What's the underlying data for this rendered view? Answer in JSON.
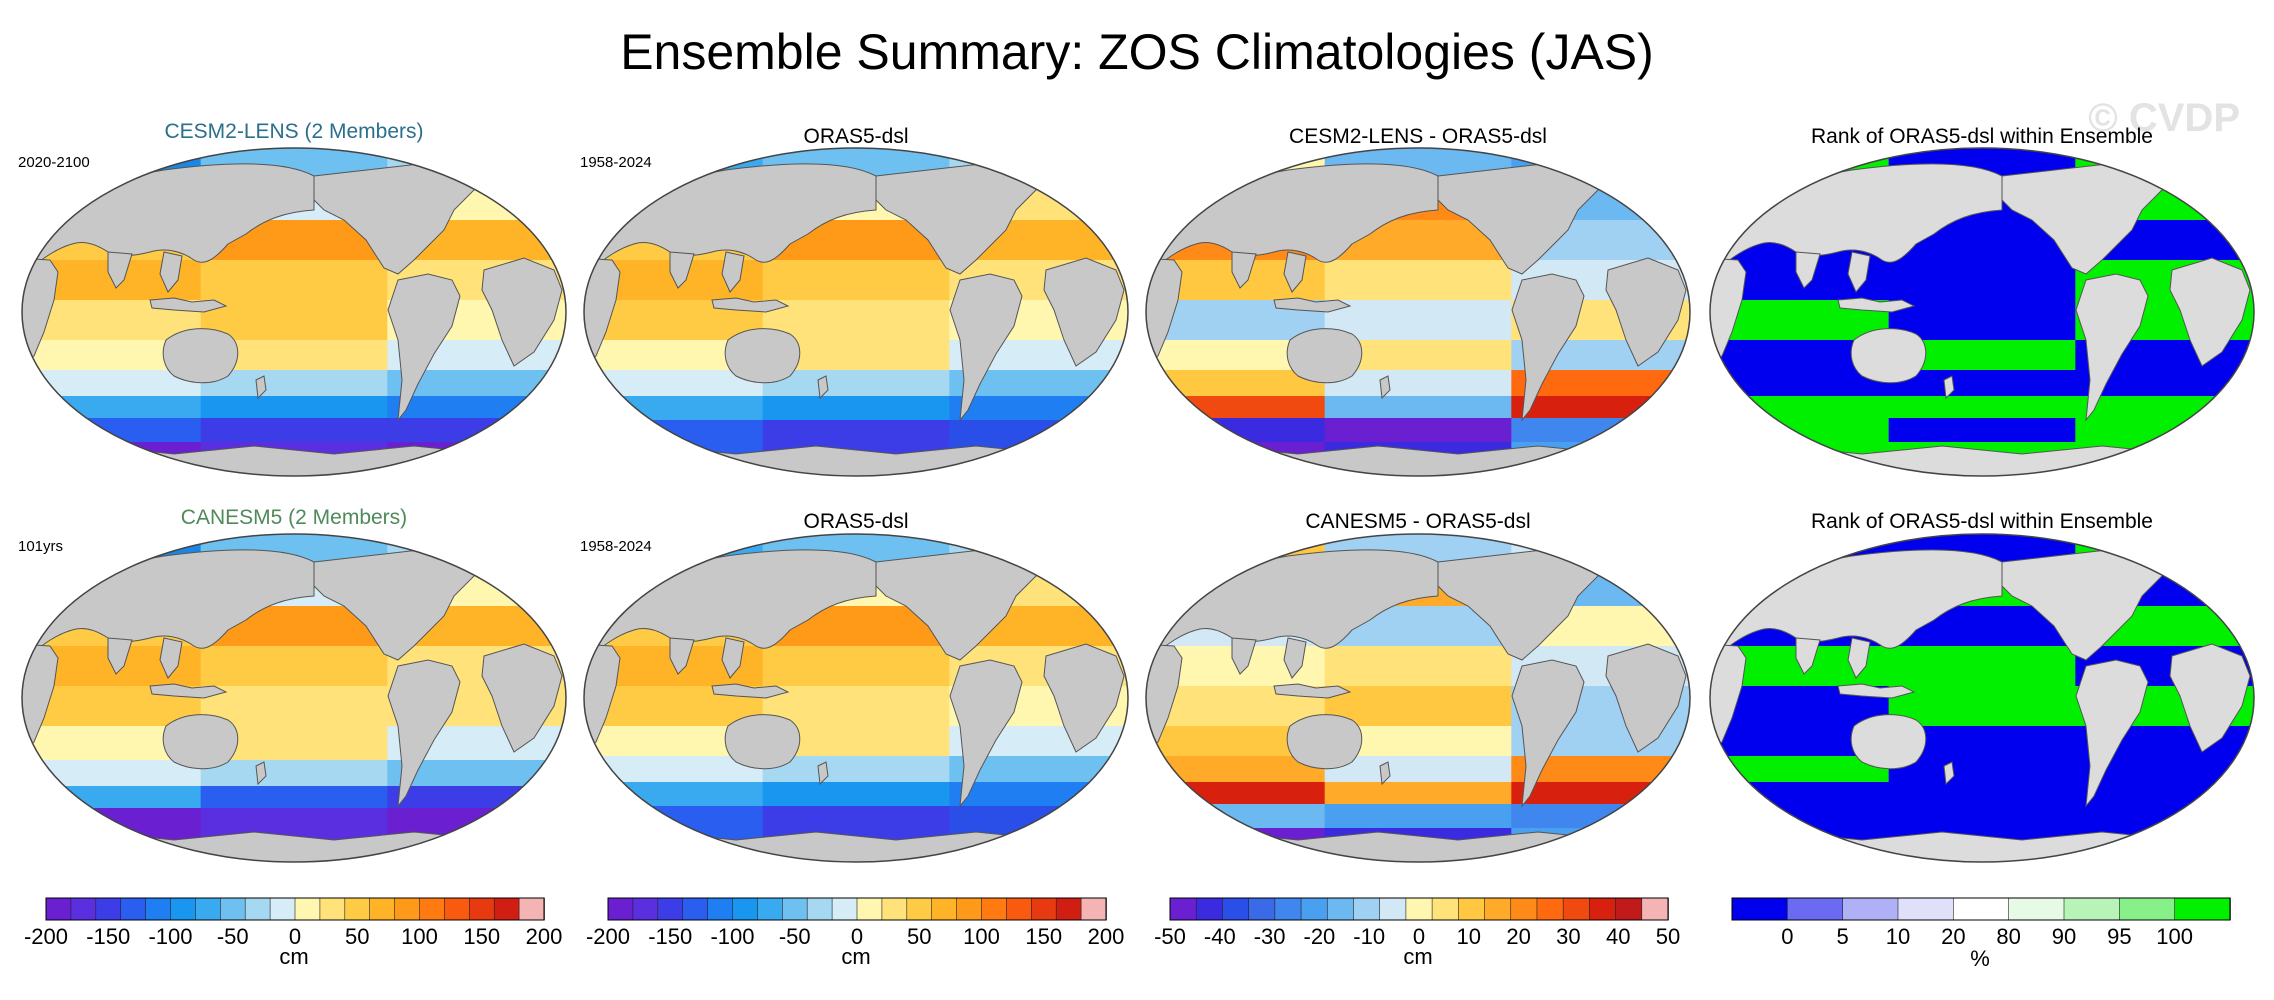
{
  "title": "Ensemble Summary: ZOS Climatologies (JAS)",
  "watermark": "© CVDP",
  "rows": [
    {
      "model": {
        "title": "CESM2-LENS (2 Members)",
        "title_color": "#2b6f8e",
        "years": "2020-2100",
        "scheme": "model"
      },
      "obs": {
        "title": "ORAS5-dsl",
        "years": "1958-2024",
        "scheme": "obs"
      },
      "diff": {
        "title": "CESM2-LENS - ORAS5-dsl",
        "scheme": "diff1"
      },
      "rank": {
        "title": "Rank of ORAS5-dsl within Ensemble",
        "scheme": "rank1"
      }
    },
    {
      "model": {
        "title": "CANESM5 (2 Members)",
        "title_color": "#4f8a5a",
        "years": "101yrs",
        "scheme": "model2"
      },
      "obs": {
        "title": "ORAS5-dsl",
        "years": "1958-2024",
        "scheme": "obs"
      },
      "diff": {
        "title": "CANESM5 - ORAS5-dsl",
        "scheme": "diff2"
      },
      "rank": {
        "title": "Rank of ORAS5-dsl within Ensemble",
        "scheme": "rank2"
      }
    }
  ],
  "colorbars": [
    {
      "name": "climatology",
      "ticks": [
        "-200",
        "-150",
        "-100",
        "-50",
        "0",
        "50",
        "100",
        "150",
        "200"
      ],
      "unit": "cm",
      "colors": [
        "#6a1fd0",
        "#5a2fe0",
        "#3d3de8",
        "#2a5ef0",
        "#1e7ef2",
        "#1896f0",
        "#3aaaf0",
        "#6ec0f0",
        "#a6d8f2",
        "#d6ecf6",
        "#fff6b0",
        "#ffe27a",
        "#ffcb45",
        "#ffb428",
        "#ff9a18",
        "#ff7a10",
        "#f85a10",
        "#e83a10",
        "#d01e12",
        "#f4b4b4"
      ]
    },
    {
      "name": "climatology",
      "ticks": [
        "-200",
        "-150",
        "-100",
        "-50",
        "0",
        "50",
        "100",
        "150",
        "200"
      ],
      "unit": "cm",
      "colors": [
        "#6a1fd0",
        "#5a2fe0",
        "#3d3de8",
        "#2a5ef0",
        "#1e7ef2",
        "#1896f0",
        "#3aaaf0",
        "#6ec0f0",
        "#a6d8f2",
        "#d6ecf6",
        "#fff6b0",
        "#ffe27a",
        "#ffcb45",
        "#ffb428",
        "#ff9a18",
        "#ff7a10",
        "#f85a10",
        "#e83a10",
        "#d01e12",
        "#f4b4b4"
      ]
    },
    {
      "name": "difference",
      "ticks": [
        "-50",
        "-40",
        "-30",
        "-20",
        "-10",
        "0",
        "10",
        "20",
        "30",
        "40",
        "50"
      ],
      "unit": "cm",
      "colors": [
        "#6a1fd0",
        "#3a2ae0",
        "#2a4ee8",
        "#3a6ae8",
        "#3f86ee",
        "#4aa0f0",
        "#6cb8f0",
        "#a0d0f2",
        "#d2e8f4",
        "#fff6b0",
        "#ffe27a",
        "#ffc840",
        "#ffaa28",
        "#ff8a18",
        "#ff6a10",
        "#f04a10",
        "#d8200e",
        "#c01a1a",
        "#f4b4b4"
      ]
    },
    {
      "name": "rank",
      "ticks": [
        "0",
        "5",
        "10",
        "20",
        "80",
        "90",
        "95",
        "100"
      ],
      "unit": "%",
      "colors": [
        "#0000ee",
        "#6a6af2",
        "#b0b0f6",
        "#e0e0fa",
        "#ffffff",
        "#e6fae6",
        "#b8f4b8",
        "#88f088",
        "#00f000"
      ]
    }
  ]
}
